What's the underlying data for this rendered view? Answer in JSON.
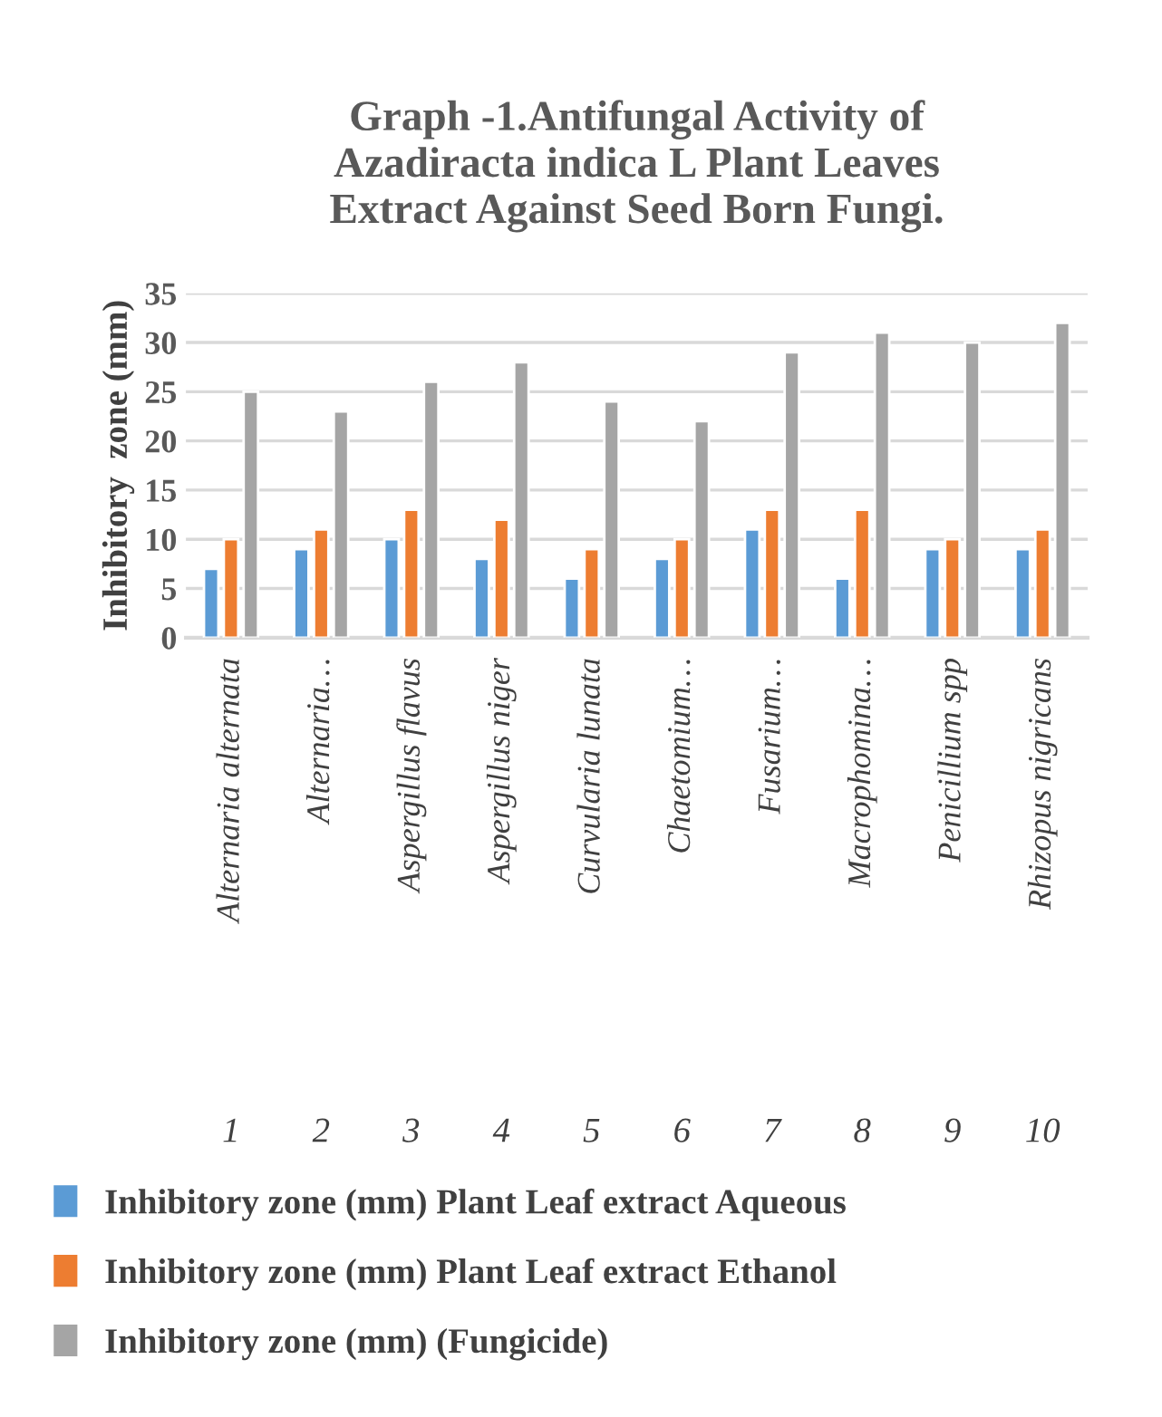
{
  "chart_data": {
    "type": "bar",
    "title": "Graph -1.Antifungal Activity of\nAzadiracta indica L Plant Leaves\nExtract Against Seed Born Fungi.",
    "ylabel": "Inhibitory  zone (mm)",
    "categories": [
      "Alternaria alternata",
      "Alternaria…",
      "Aspergillus flavus",
      "Aspergillus niger",
      "Curvularia lunata",
      "Chaetomium…",
      "Fusarium…",
      "Macrophomina…",
      "Penicillium spp",
      "Rhizopus nigricans"
    ],
    "annotations": [
      "1",
      "2",
      "3",
      "4",
      "5",
      "6",
      "7",
      "8",
      "9",
      "10"
    ],
    "series": [
      {
        "name": "Inhibitory zone (mm) Plant Leaf extract Aqueous",
        "color": "#5b9bd5",
        "values": [
          7,
          9,
          10,
          8,
          6,
          8,
          11,
          6,
          9,
          9
        ]
      },
      {
        "name": "Inhibitory zone (mm) Plant Leaf extract Ethanol",
        "color": "#ed7d31",
        "values": [
          10,
          11,
          13,
          12,
          9,
          10,
          13,
          13,
          10,
          11
        ]
      },
      {
        "name": "Inhibitory zone (mm) (Fungicide)",
        "color": "#a5a5a5",
        "values": [
          25,
          23,
          26,
          28,
          24,
          22,
          29,
          31,
          30,
          32
        ]
      }
    ],
    "ylim": [
      0,
      35
    ],
    "yticks": [
      0,
      5,
      10,
      15,
      20,
      25,
      30,
      35
    ],
    "grid": "y",
    "legend": "bottom"
  }
}
